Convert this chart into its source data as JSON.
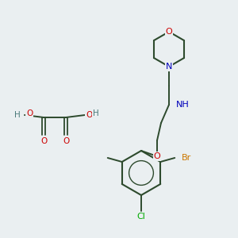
{
  "bg_color": "#eaeff1",
  "bond_color": "#2d4a2d",
  "atom_colors": {
    "O": "#cc0000",
    "N": "#0000bb",
    "Br": "#cc7700",
    "Cl": "#00aa00",
    "C": "#2d4a2d",
    "H": "#4a7a7a"
  },
  "figsize": [
    3.0,
    3.0
  ],
  "dpi": 100
}
